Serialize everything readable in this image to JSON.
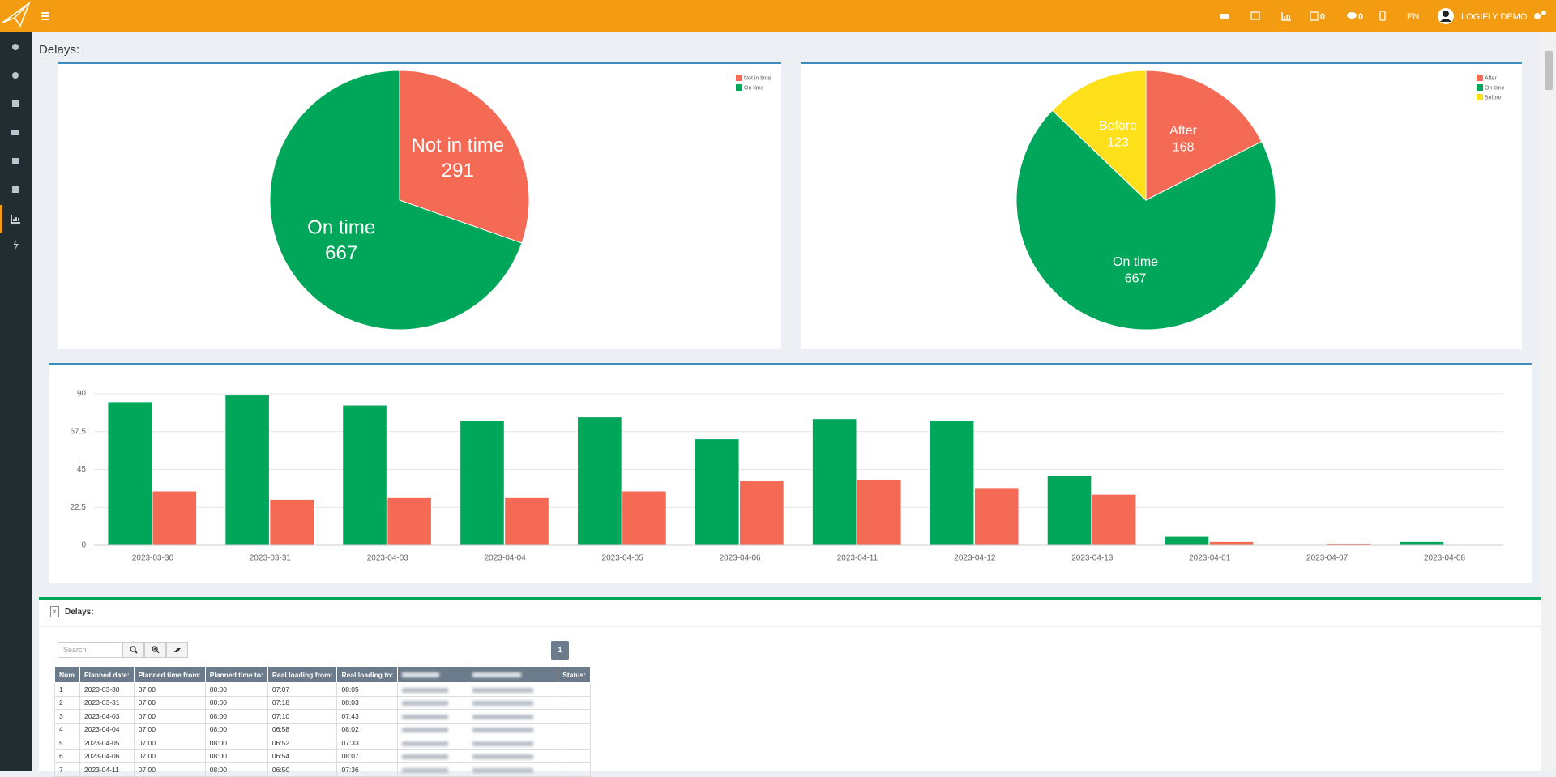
{
  "header": {
    "badges": [
      "0",
      "0"
    ],
    "language": "EN",
    "user": "LOGIFLY DEMO"
  },
  "page_title": "Delays:",
  "chart_data": [
    {
      "type": "pie",
      "categories": [
        "Not in time",
        "On time"
      ],
      "values": [
        291,
        667
      ],
      "colors": [
        "#f46a55",
        "#00a65a"
      ],
      "legend": "top-right"
    },
    {
      "type": "pie",
      "categories": [
        "After",
        "On time",
        "Before"
      ],
      "values": [
        168,
        667,
        123
      ],
      "colors": [
        "#f46a55",
        "#00a65a",
        "#fde01a"
      ],
      "legend": "top-right"
    },
    {
      "type": "bar",
      "categories": [
        "2023-03-30",
        "2023-03-31",
        "2023-04-03",
        "2023-04-04",
        "2023-04-05",
        "2023-04-06",
        "2023-04-11",
        "2023-04-12",
        "2023-04-13",
        "2023-04-01",
        "2023-04-07",
        "2023-04-08"
      ],
      "series": [
        {
          "color": "#00a65a",
          "values": [
            85,
            89,
            83,
            74,
            76,
            63,
            75,
            74,
            41,
            5,
            0,
            2
          ]
        },
        {
          "color": "#f46a55",
          "values": [
            32,
            27,
            28,
            28,
            32,
            38,
            39,
            34,
            30,
            2,
            1,
            0
          ]
        }
      ],
      "ylim": [
        0,
        90
      ],
      "yticks": [
        0,
        22.5,
        45,
        67.5,
        90
      ],
      "grid": true
    }
  ],
  "table_panel": {
    "title": "Delays:",
    "search_placeholder": "Search",
    "page": "1",
    "columns": [
      "Num",
      "Planned date:",
      "Planned time from:",
      "Planned time to:",
      "Real loading from:",
      "Real loading to:",
      "Status:"
    ],
    "rows": [
      [
        "1",
        "2023-03-30",
        "07:00",
        "08:00",
        "07:07",
        "08:05"
      ],
      [
        "2",
        "2023-03-31",
        "07:00",
        "08:00",
        "07:18",
        "08:03"
      ],
      [
        "3",
        "2023-04-03",
        "07:00",
        "08:00",
        "07:10",
        "07:43"
      ],
      [
        "4",
        "2023-04-04",
        "07:00",
        "08:00",
        "06:58",
        "08:02"
      ],
      [
        "5",
        "2023-04-05",
        "07:00",
        "08:00",
        "06:52",
        "07:33"
      ],
      [
        "6",
        "2023-04-06",
        "07:00",
        "08:00",
        "06:54",
        "08:07"
      ],
      [
        "7",
        "2023-04-11",
        "07:00",
        "08:00",
        "06:50",
        "07:36"
      ]
    ]
  }
}
